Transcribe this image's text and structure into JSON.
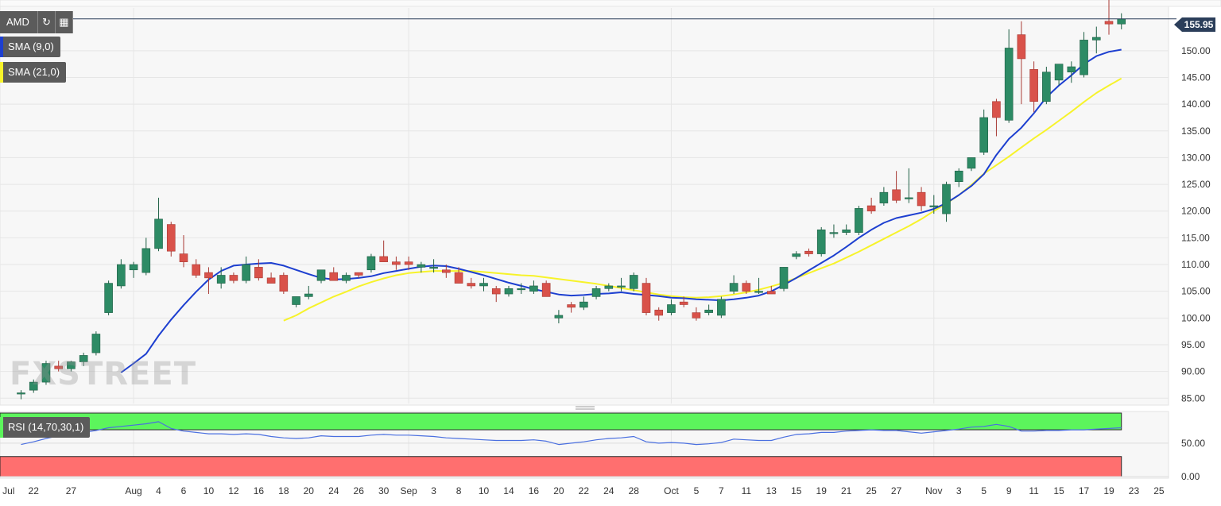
{
  "toolbar": {
    "ticker": "AMD",
    "refresh_icon": "refresh-icon",
    "calendar_icon": "calendar-icon"
  },
  "legend": {
    "sma9": "SMA (9,0)",
    "sma21": "SMA (21,0)",
    "rsi": "RSI (14,70,30,1)"
  },
  "price_badge": "155.95",
  "watermark": "FXSTREET",
  "colors": {
    "up": "#2d8b65",
    "down": "#d9524a",
    "sma9": "#1d3fd0",
    "sma21": "#f7f32a",
    "rsi_line": "#4a6fe0",
    "overbought": "#5cf55c",
    "oversold": "#ff6f6f",
    "price_line": "#2b3e5a"
  },
  "chart_data": [
    {
      "type": "candlestick",
      "title": "AMD",
      "ylim": [
        84,
        158
      ],
      "yticks": [
        85.0,
        90.0,
        95.0,
        100.0,
        105.0,
        110.0,
        115.0,
        120.0,
        125.0,
        130.0,
        135.0,
        140.0,
        145.0,
        150.0
      ],
      "ytick_labels": [
        "85.00",
        "90.00",
        "95.00",
        "100.00",
        "105.00",
        "110.00",
        "115.00",
        "120.00",
        "125.00",
        "130.00",
        "135.00",
        "140.00",
        "145.00",
        "150.00"
      ],
      "last_price": 155.95,
      "xtick_labels": [
        {
          "i": -1,
          "label": "Jul"
        },
        {
          "i": 1,
          "label": "22"
        },
        {
          "i": 4,
          "label": "27"
        },
        {
          "i": 9,
          "label": "Aug"
        },
        {
          "i": 11,
          "label": "4"
        },
        {
          "i": 13,
          "label": "6"
        },
        {
          "i": 15,
          "label": "10"
        },
        {
          "i": 17,
          "label": "12"
        },
        {
          "i": 19,
          "label": "16"
        },
        {
          "i": 21,
          "label": "18"
        },
        {
          "i": 23,
          "label": "20"
        },
        {
          "i": 25,
          "label": "24"
        },
        {
          "i": 27,
          "label": "26"
        },
        {
          "i": 29,
          "label": "30"
        },
        {
          "i": 31,
          "label": "Sep"
        },
        {
          "i": 33,
          "label": "3"
        },
        {
          "i": 35,
          "label": "8"
        },
        {
          "i": 37,
          "label": "10"
        },
        {
          "i": 39,
          "label": "14"
        },
        {
          "i": 41,
          "label": "16"
        },
        {
          "i": 43,
          "label": "20"
        },
        {
          "i": 45,
          "label": "22"
        },
        {
          "i": 47,
          "label": "24"
        },
        {
          "i": 49,
          "label": "28"
        },
        {
          "i": 52,
          "label": "Oct"
        },
        {
          "i": 54,
          "label": "5"
        },
        {
          "i": 56,
          "label": "7"
        },
        {
          "i": 58,
          "label": "11"
        },
        {
          "i": 60,
          "label": "13"
        },
        {
          "i": 62,
          "label": "15"
        },
        {
          "i": 64,
          "label": "19"
        },
        {
          "i": 66,
          "label": "21"
        },
        {
          "i": 68,
          "label": "25"
        },
        {
          "i": 70,
          "label": "27"
        },
        {
          "i": 73,
          "label": "Nov"
        },
        {
          "i": 75,
          "label": "3"
        },
        {
          "i": 77,
          "label": "5"
        },
        {
          "i": 79,
          "label": "9"
        },
        {
          "i": 81,
          "label": "11"
        },
        {
          "i": 83,
          "label": "15"
        },
        {
          "i": 85,
          "label": "17"
        },
        {
          "i": 87,
          "label": "19"
        },
        {
          "i": 89,
          "label": "23"
        },
        {
          "i": 91,
          "label": "25"
        }
      ],
      "vgrid_indices": [
        9,
        31,
        52,
        73
      ],
      "ohlc": [
        [
          85.8,
          86.5,
          84.8,
          86.0
        ],
        [
          86.5,
          88.5,
          86.0,
          88.0
        ],
        [
          88.0,
          92.0,
          87.5,
          91.5
        ],
        [
          91.0,
          92.0,
          90.0,
          90.5
        ],
        [
          90.5,
          92.0,
          90.0,
          91.8
        ],
        [
          91.8,
          93.5,
          91.0,
          93.0
        ],
        [
          93.5,
          97.5,
          93.0,
          97.0
        ],
        [
          101.0,
          107.0,
          100.5,
          106.5
        ],
        [
          106.0,
          111.0,
          105.5,
          110.0
        ],
        [
          109.0,
          110.5,
          107.5,
          110.0
        ],
        [
          108.5,
          115.0,
          108.0,
          113.0
        ],
        [
          113.0,
          122.5,
          112.5,
          118.5
        ],
        [
          117.5,
          118.0,
          111.5,
          112.5
        ],
        [
          112.0,
          115.5,
          109.5,
          110.5
        ],
        [
          110.0,
          111.0,
          107.5,
          108.0
        ],
        [
          108.5,
          109.5,
          104.5,
          107.5
        ],
        [
          106.5,
          109.5,
          105.5,
          108.0
        ],
        [
          108.0,
          108.5,
          106.5,
          107.0
        ],
        [
          107.0,
          111.5,
          106.5,
          110.0
        ],
        [
          109.5,
          111.0,
          107.0,
          107.5
        ],
        [
          107.5,
          108.5,
          106.5,
          106.5
        ],
        [
          108.0,
          108.5,
          104.5,
          105.0
        ],
        [
          102.5,
          104.0,
          102.0,
          104.0
        ],
        [
          104.0,
          106.0,
          103.5,
          104.5
        ],
        [
          107.0,
          109.0,
          106.5,
          109.0
        ],
        [
          108.5,
          109.5,
          107.0,
          107.0
        ],
        [
          107.0,
          108.5,
          106.5,
          108.0
        ],
        [
          108.5,
          108.5,
          107.5,
          108.0
        ],
        [
          109.0,
          112.0,
          108.5,
          111.5
        ],
        [
          111.5,
          114.5,
          110.5,
          110.5
        ],
        [
          110.5,
          111.5,
          109.0,
          110.0
        ],
        [
          110.5,
          111.5,
          109.0,
          110.0
        ],
        [
          109.5,
          110.5,
          108.5,
          110.0
        ],
        [
          109.5,
          111.0,
          108.5,
          109.5
        ],
        [
          109.0,
          110.0,
          107.5,
          108.5
        ],
        [
          108.5,
          109.5,
          106.5,
          106.5
        ],
        [
          106.5,
          107.5,
          105.5,
          106.0
        ],
        [
          106.0,
          107.5,
          105.0,
          106.5
        ],
        [
          105.5,
          106.0,
          103.0,
          104.5
        ],
        [
          104.5,
          106.0,
          104.0,
          105.5
        ],
        [
          105.5,
          106.5,
          104.5,
          105.5
        ],
        [
          105.0,
          107.0,
          104.5,
          106.0
        ],
        [
          106.5,
          107.0,
          104.0,
          104.0
        ],
        [
          100.0,
          101.5,
          99.0,
          100.5
        ],
        [
          102.5,
          103.0,
          101.0,
          102.0
        ],
        [
          102.0,
          104.0,
          101.5,
          103.0
        ],
        [
          104.0,
          106.0,
          103.5,
          105.5
        ],
        [
          105.5,
          106.5,
          105.0,
          106.0
        ],
        [
          106.0,
          107.5,
          105.0,
          106.0
        ],
        [
          105.5,
          108.5,
          105.0,
          108.0
        ],
        [
          106.5,
          107.5,
          100.5,
          101.0
        ],
        [
          101.5,
          102.0,
          99.5,
          100.5
        ],
        [
          101.0,
          103.5,
          100.5,
          102.5
        ],
        [
          103.0,
          104.0,
          102.0,
          102.5
        ],
        [
          101.0,
          102.0,
          99.5,
          100.0
        ],
        [
          101.0,
          102.5,
          100.5,
          101.5
        ],
        [
          100.5,
          104.0,
          100.0,
          103.5
        ],
        [
          105.0,
          108.0,
          104.5,
          106.5
        ],
        [
          106.5,
          107.0,
          104.5,
          105.0
        ],
        [
          105.0,
          107.5,
          104.5,
          105.0
        ],
        [
          105.0,
          106.0,
          104.5,
          104.5
        ],
        [
          105.5,
          109.5,
          105.0,
          109.5
        ],
        [
          111.5,
          112.5,
          111.0,
          112.0
        ],
        [
          112.5,
          113.0,
          111.5,
          112.0
        ],
        [
          112.0,
          117.0,
          111.5,
          116.5
        ],
        [
          116.0,
          117.5,
          115.0,
          116.0
        ],
        [
          116.0,
          117.5,
          115.5,
          116.5
        ],
        [
          116.0,
          121.0,
          115.5,
          120.5
        ],
        [
          121.0,
          122.5,
          119.5,
          120.0
        ],
        [
          121.5,
          124.5,
          121.0,
          123.5
        ],
        [
          124.0,
          127.5,
          121.5,
          122.0
        ],
        [
          122.5,
          128.0,
          121.5,
          122.5
        ],
        [
          123.5,
          124.5,
          120.0,
          121.0
        ],
        [
          121.0,
          123.0,
          119.5,
          121.0
        ],
        [
          119.5,
          125.5,
          118.0,
          125.0
        ],
        [
          125.5,
          128.0,
          124.5,
          127.5
        ],
        [
          128.0,
          130.0,
          127.5,
          130.0
        ],
        [
          131.0,
          139.0,
          130.5,
          137.5
        ],
        [
          140.5,
          141.0,
          134.0,
          137.5
        ],
        [
          137.0,
          154.0,
          136.5,
          150.5
        ],
        [
          153.0,
          155.5,
          140.0,
          148.5
        ],
        [
          146.5,
          148.0,
          138.5,
          140.5
        ],
        [
          140.5,
          147.0,
          140.0,
          146.0
        ],
        [
          144.5,
          147.5,
          143.5,
          147.5
        ],
        [
          146.0,
          148.0,
          144.0,
          147.0
        ],
        [
          145.5,
          153.5,
          145.0,
          152.0
        ],
        [
          152.0,
          154.5,
          149.5,
          152.5
        ],
        [
          155.5,
          160.0,
          153.0,
          155.0
        ],
        [
          155.0,
          157.0,
          154.0,
          155.95
        ]
      ],
      "sma9": [
        null,
        null,
        null,
        null,
        null,
        null,
        null,
        null,
        89.8,
        91.5,
        93.3,
        96.7,
        99.7,
        102.4,
        104.9,
        107.2,
        108.8,
        109.8,
        110.0,
        110.2,
        110.3,
        109.8,
        109.0,
        108.2,
        107.5,
        107.2,
        107.3,
        107.5,
        107.8,
        108.4,
        108.8,
        109.2,
        109.6,
        109.8,
        109.7,
        109.2,
        108.6,
        108.0,
        107.3,
        106.6,
        106.0,
        105.4,
        104.9,
        104.4,
        104.2,
        104.3,
        104.5,
        104.6,
        104.8,
        104.5,
        104.3,
        104.1,
        103.8,
        103.7,
        103.5,
        103.4,
        103.3,
        103.5,
        103.8,
        104.2,
        105.0,
        106.2,
        107.5,
        108.9,
        110.3,
        111.7,
        113.3,
        115.0,
        116.5,
        117.8,
        118.7,
        119.2,
        119.7,
        120.4,
        121.5,
        123.0,
        124.7,
        126.9,
        130.5,
        133.5,
        135.6,
        138.3,
        141.3,
        143.5,
        145.4,
        147.5,
        149.0,
        149.8,
        150.2
      ],
      "sma21": [
        null,
        null,
        null,
        null,
        null,
        null,
        null,
        null,
        null,
        null,
        null,
        null,
        null,
        null,
        null,
        null,
        null,
        null,
        null,
        null,
        null,
        99.5,
        100.5,
        101.8,
        102.9,
        104.0,
        104.9,
        105.9,
        106.7,
        107.4,
        108.0,
        108.4,
        108.6,
        108.8,
        108.8,
        108.8,
        108.8,
        108.6,
        108.4,
        108.2,
        108.0,
        107.9,
        107.6,
        107.3,
        107.0,
        106.7,
        106.4,
        106.0,
        105.6,
        105.2,
        104.8,
        104.4,
        104.1,
        103.9,
        103.8,
        103.9,
        104.1,
        104.4,
        104.8,
        105.3,
        105.9,
        106.6,
        107.5,
        108.4,
        109.3,
        110.2,
        111.3,
        112.4,
        113.6,
        114.8,
        116.0,
        117.2,
        118.5,
        120.0,
        121.4,
        123.0,
        124.9,
        127.0,
        128.6,
        130.2,
        131.9,
        133.6,
        135.2,
        136.9,
        138.6,
        140.4,
        142.1,
        143.5,
        144.8
      ],
      "price_line": 155.95
    },
    {
      "type": "line",
      "title": "RSI (14,70,30,1)",
      "ylim": [
        0,
        95
      ],
      "yticks": [
        0,
        50
      ],
      "ytick_labels": [
        "0.00",
        "50.00"
      ],
      "overbought": 70,
      "oversold": 30,
      "rsi": [
        48,
        52,
        57,
        61,
        63,
        66,
        69,
        73,
        75,
        77,
        79,
        82,
        72,
        68,
        66,
        64,
        64,
        63,
        64,
        63,
        60,
        58,
        57,
        58,
        61,
        60,
        60,
        60,
        62,
        63,
        62,
        62,
        61,
        60,
        58,
        57,
        56,
        55,
        54,
        54,
        54,
        55,
        53,
        48,
        50,
        52,
        55,
        57,
        58,
        60,
        52,
        50,
        51,
        50,
        48,
        49,
        51,
        56,
        55,
        54,
        54,
        59,
        63,
        64,
        66,
        66,
        68,
        69,
        70,
        69,
        69,
        67,
        65,
        67,
        69,
        71,
        74,
        75,
        78,
        75,
        68,
        68,
        69,
        69,
        70,
        70,
        71,
        72,
        73
      ]
    }
  ]
}
